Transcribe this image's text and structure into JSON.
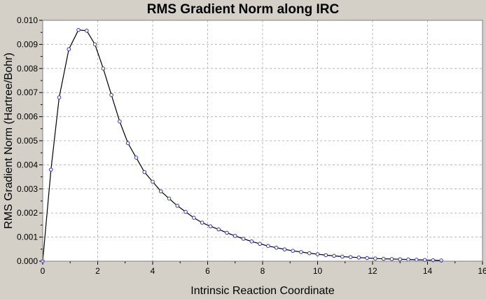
{
  "chart_data": {
    "type": "line",
    "title": "RMS Gradient Norm along IRC",
    "xlabel": "Intrinsic Reaction Coordinate",
    "ylabel": "RMS Gradient Norm (Hartree/Bohr)",
    "xlim": [
      0,
      16
    ],
    "ylim": [
      0,
      0.01
    ],
    "xticks": [
      "0",
      "2",
      "4",
      "6",
      "8",
      "10",
      "12",
      "14",
      "16"
    ],
    "yticks": [
      "0.000",
      "0.001",
      "0.002",
      "0.003",
      "0.004",
      "0.005",
      "0.006",
      "0.007",
      "0.008",
      "0.009",
      "0.010"
    ],
    "grid": true,
    "series": [
      {
        "color": "#000000",
        "marker_color": "#3333cc",
        "x": [
          0.0,
          0.3,
          0.6,
          0.95,
          1.3,
          1.6,
          1.9,
          2.2,
          2.5,
          2.8,
          3.1,
          3.4,
          3.7,
          4.0,
          4.3,
          4.6,
          4.9,
          5.2,
          5.5,
          5.8,
          6.1,
          6.4,
          6.7,
          7.0,
          7.3,
          7.6,
          7.9,
          8.2,
          8.5,
          8.8,
          9.1,
          9.4,
          9.7,
          10.0,
          10.3,
          10.6,
          10.9,
          11.2,
          11.5,
          11.8,
          12.1,
          12.4,
          12.7,
          13.0,
          13.3,
          13.6,
          13.9,
          14.2,
          14.5
        ],
        "y": [
          0.0,
          0.0038,
          0.0068,
          0.0088,
          0.0096,
          0.00957,
          0.009,
          0.008,
          0.0069,
          0.0058,
          0.0049,
          0.0043,
          0.0037,
          0.0033,
          0.0029,
          0.0026,
          0.0023,
          0.00205,
          0.0018,
          0.0016,
          0.00145,
          0.00132,
          0.00118,
          0.00105,
          0.00093,
          0.00082,
          0.00072,
          0.00063,
          0.00056,
          0.00049,
          0.00043,
          0.00038,
          0.00033,
          0.00029,
          0.00025,
          0.00022,
          0.00019,
          0.00017,
          0.00015,
          0.00013,
          0.00011,
          0.0001,
          9e-05,
          8e-05,
          7e-05,
          6e-05,
          5e-05,
          4e-05,
          3e-05
        ]
      }
    ]
  }
}
